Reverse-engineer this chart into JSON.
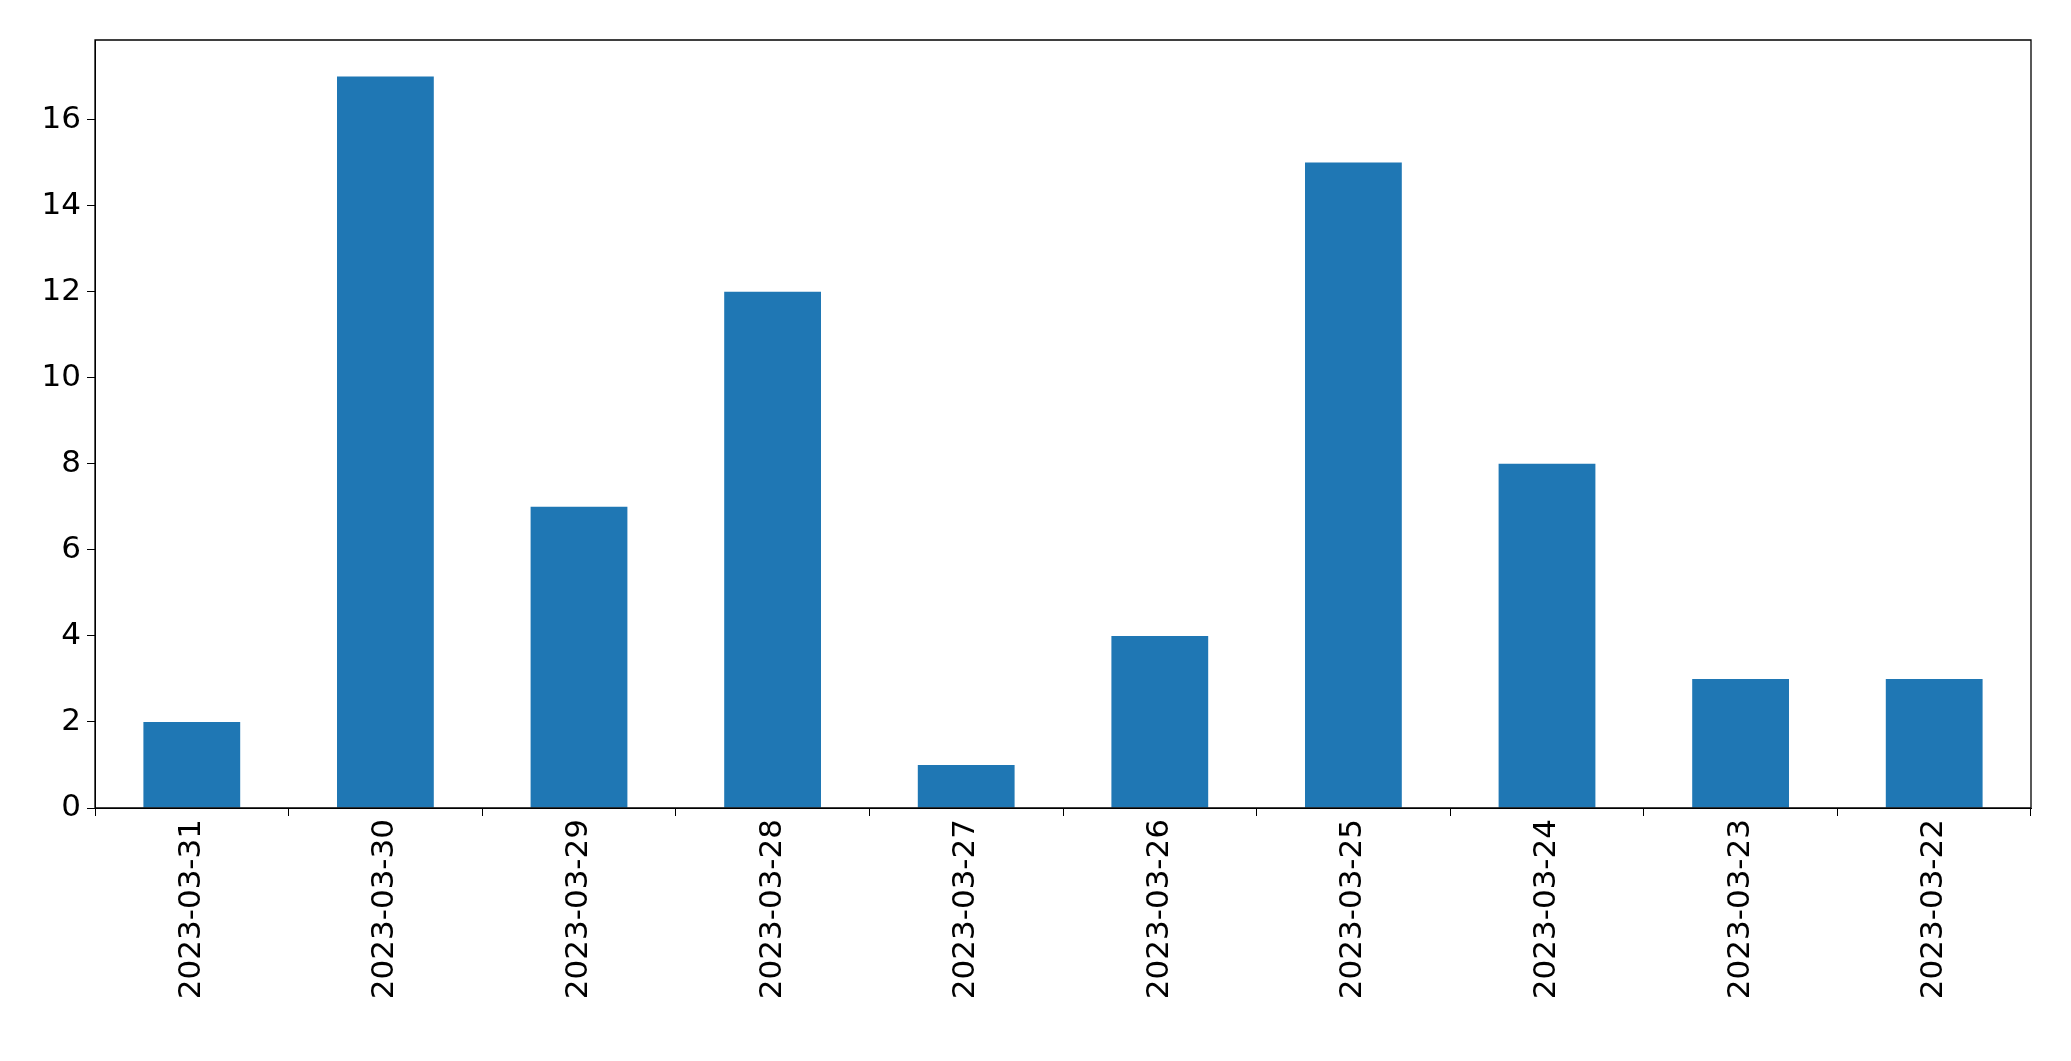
{
  "chart_data": {
    "type": "bar",
    "categories": [
      "2023-03-31",
      "2023-03-30",
      "2023-03-29",
      "2023-03-28",
      "2023-03-27",
      "2023-03-26",
      "2023-03-25",
      "2023-03-24",
      "2023-03-23",
      "2023-03-22"
    ],
    "values": [
      2,
      17,
      7,
      12,
      1,
      4,
      15,
      8,
      3,
      3
    ],
    "color": "#1f77b4",
    "ylim": [
      0,
      17.85
    ],
    "yticks": [
      0,
      2,
      4,
      6,
      8,
      10,
      12,
      14,
      16
    ],
    "grid": false,
    "legend": false
  }
}
